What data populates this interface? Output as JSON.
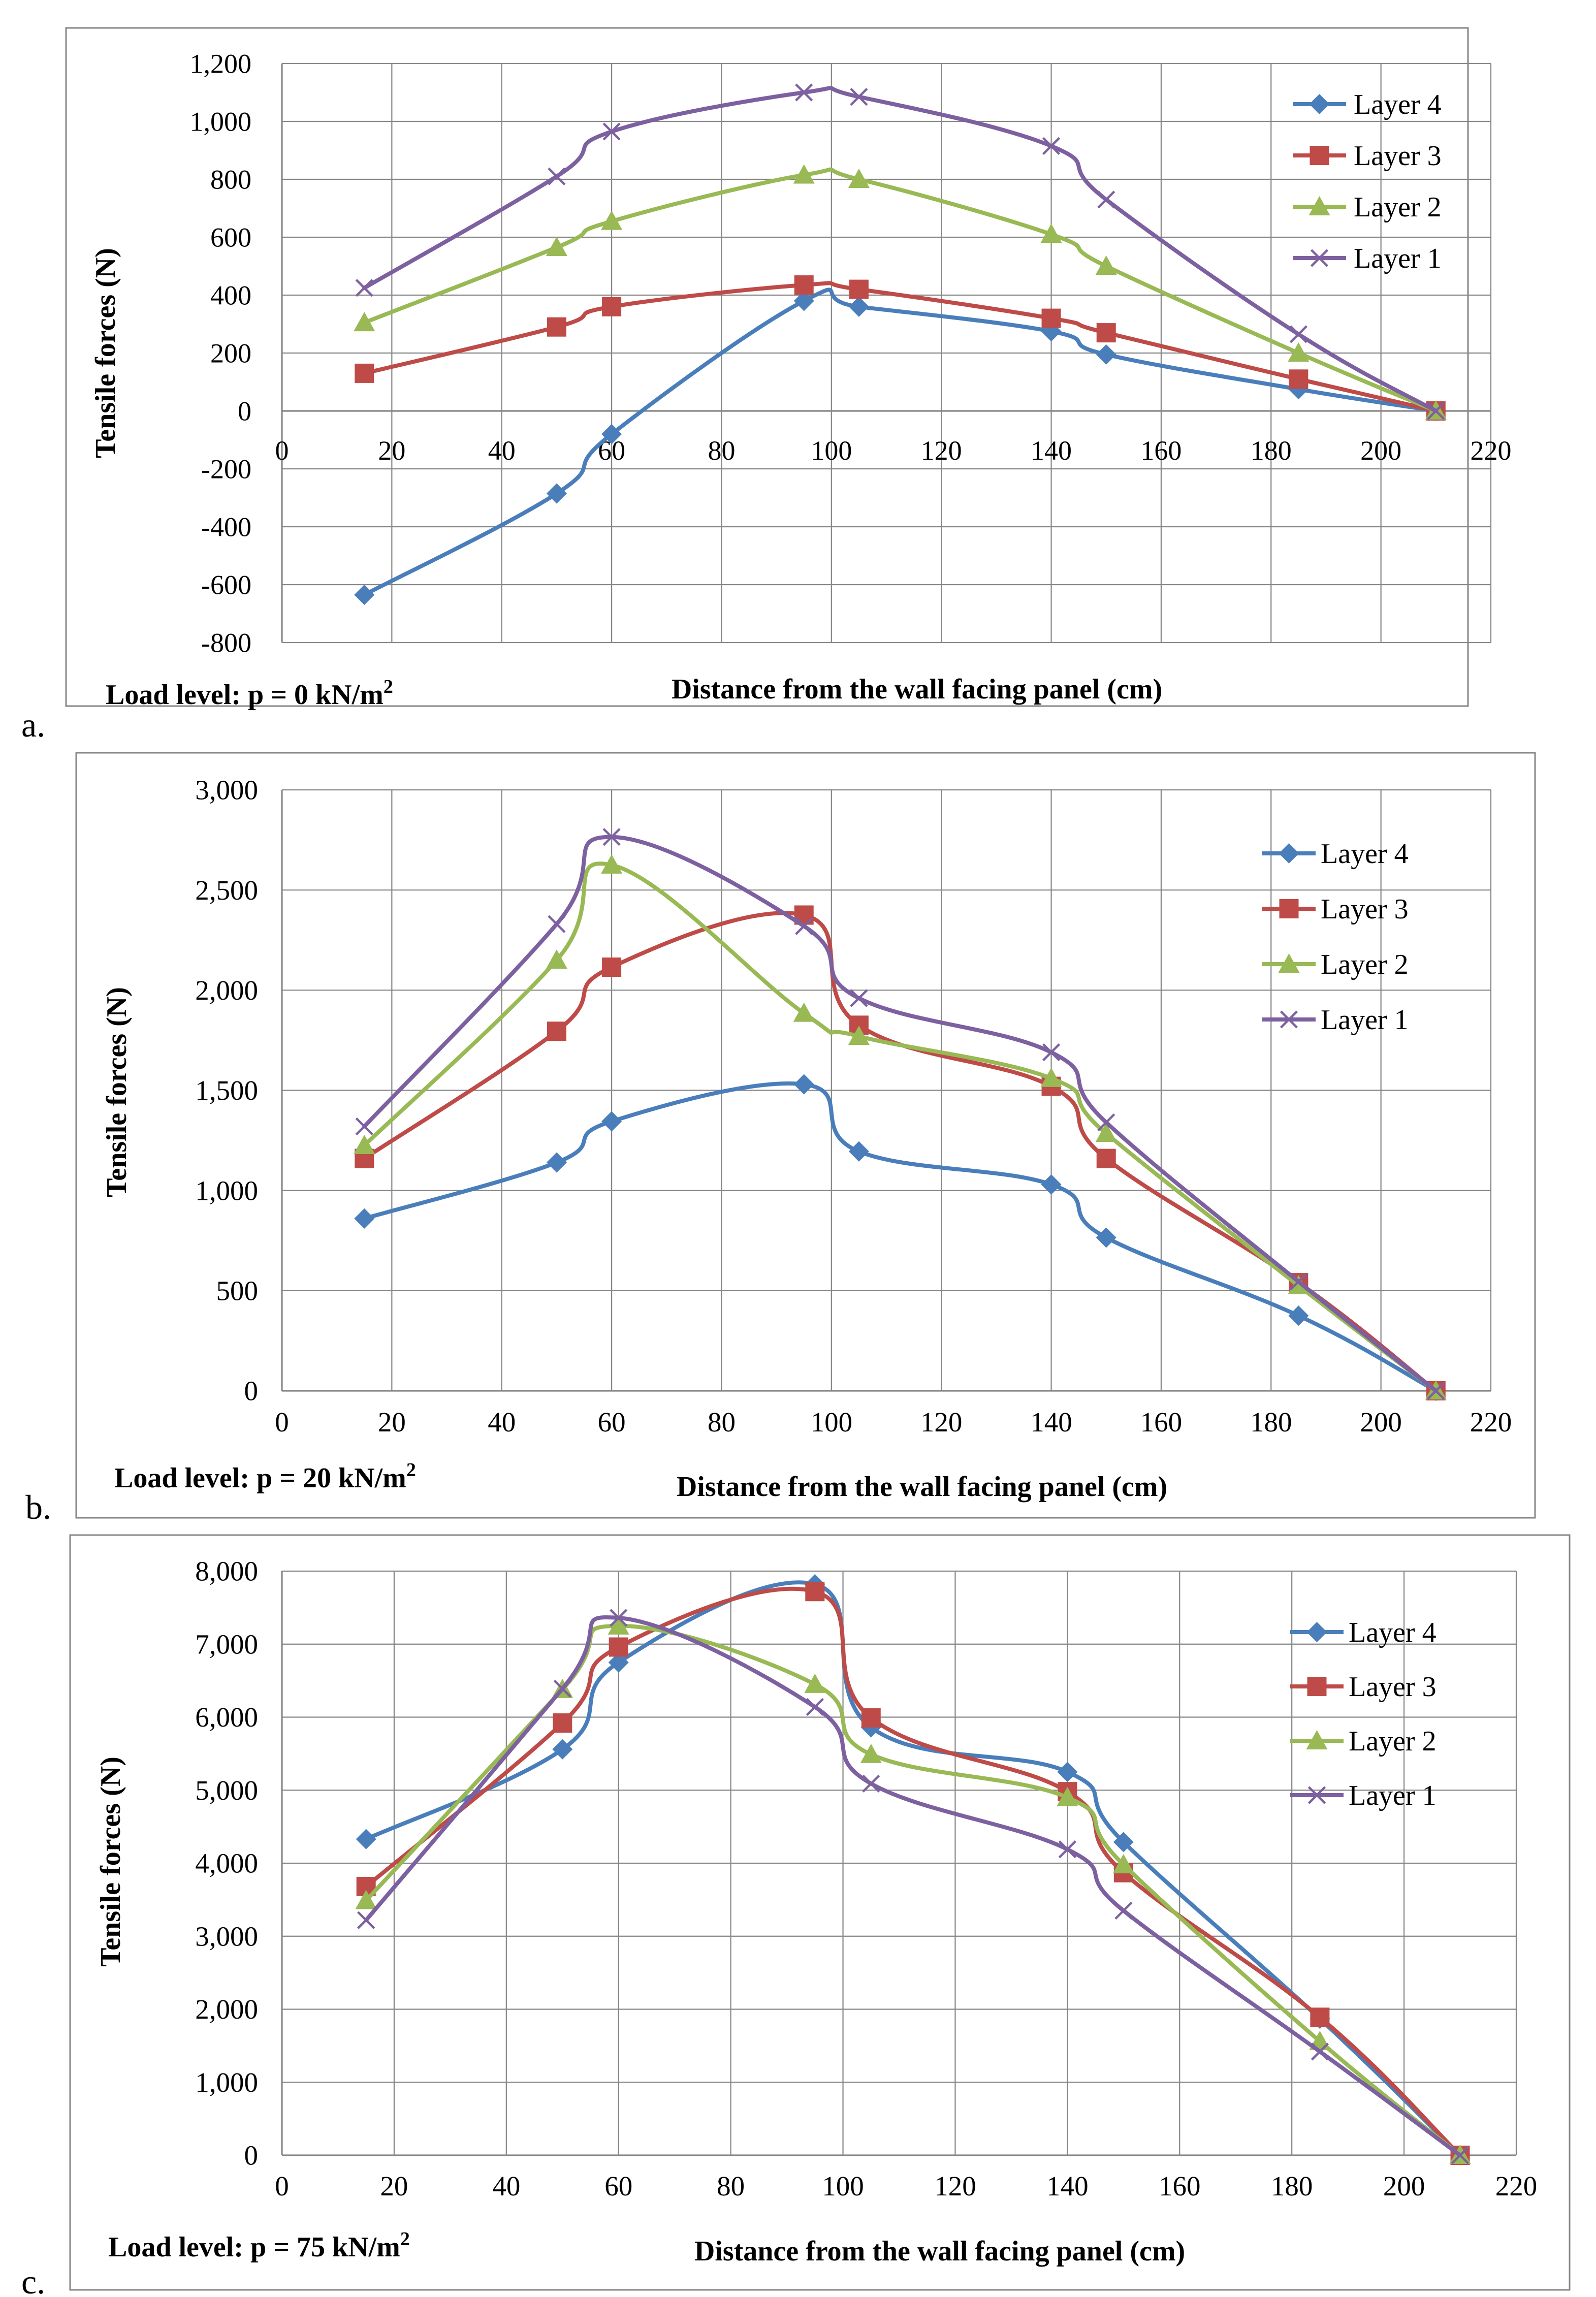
{
  "chart_data": [
    {
      "type": "line",
      "panel_letter": "a.",
      "ylabel": "Tensile forces (N)",
      "xlabel": "Distance from the wall facing panel (cm)",
      "load_label": "Load level: p = 0 kN/m",
      "load_sup": "2",
      "xlim": [
        0,
        220
      ],
      "ylim": [
        -800,
        1200
      ],
      "x_ticks": [
        0,
        20,
        40,
        60,
        80,
        100,
        120,
        140,
        160,
        180,
        200,
        220
      ],
      "x_tick_labels": [
        "0",
        "20",
        "40",
        "60",
        "80",
        "100",
        "120",
        "140",
        "160",
        "180",
        "200",
        "220"
      ],
      "y_ticks": [
        -800,
        -600,
        -400,
        -200,
        0,
        200,
        400,
        600,
        800,
        1000,
        1200
      ],
      "y_tick_labels": [
        "-800",
        "-600",
        "-400",
        "-200",
        "0",
        "200",
        "400",
        "600",
        "800",
        "1,000",
        "1,200"
      ],
      "x_axis_at_zero": true,
      "x": [
        15,
        50,
        60,
        95,
        105,
        140,
        150,
        185,
        210
      ],
      "series": [
        {
          "name": "Layer 4",
          "values": [
            -635,
            -285,
            -80,
            380,
            360,
            275,
            195,
            75,
            0
          ]
        },
        {
          "name": "Layer 3",
          "values": [
            130,
            290,
            360,
            435,
            420,
            320,
            270,
            110,
            0
          ]
        },
        {
          "name": "Layer 2",
          "values": [
            305,
            565,
            655,
            815,
            800,
            610,
            500,
            200,
            0
          ]
        },
        {
          "name": "Layer 1",
          "values": [
            425,
            810,
            965,
            1100,
            1085,
            915,
            730,
            265,
            0
          ]
        }
      ],
      "legend_position": "top-right"
    },
    {
      "type": "line",
      "panel_letter": "b.",
      "ylabel": "Tensile forces (N)",
      "xlabel": "Distance from the wall facing panel (cm)",
      "load_label": "Load level: p = 20 kN/m",
      "load_sup": "2",
      "xlim": [
        0,
        220
      ],
      "ylim": [
        0,
        3000
      ],
      "x_ticks": [
        0,
        20,
        40,
        60,
        80,
        100,
        120,
        140,
        160,
        180,
        200,
        220
      ],
      "x_tick_labels": [
        "0",
        "20",
        "40",
        "60",
        "80",
        "100",
        "120",
        "140",
        "160",
        "180",
        "200",
        "220"
      ],
      "y_ticks": [
        0,
        500,
        1000,
        1500,
        2000,
        2500,
        3000
      ],
      "y_tick_labels": [
        "0",
        "500",
        "1,000",
        "1,500",
        "2,000",
        "2,500",
        "3,000"
      ],
      "x_axis_at_zero": false,
      "x": [
        15,
        50,
        60,
        95,
        105,
        140,
        150,
        185,
        210
      ],
      "series": [
        {
          "name": "Layer 4",
          "values": [
            860,
            1140,
            1345,
            1530,
            1195,
            1030,
            765,
            375,
            0
          ]
        },
        {
          "name": "Layer 3",
          "values": [
            1160,
            1795,
            2115,
            2375,
            1825,
            1520,
            1160,
            540,
            0
          ]
        },
        {
          "name": "Layer 2",
          "values": [
            1225,
            2150,
            2625,
            1885,
            1770,
            1560,
            1285,
            525,
            0
          ]
        },
        {
          "name": "Layer 1",
          "values": [
            1320,
            2330,
            2765,
            2320,
            1960,
            1690,
            1340,
            545,
            0
          ]
        }
      ],
      "legend_position": "top-right"
    },
    {
      "type": "line",
      "panel_letter": "c.",
      "ylabel": "Tensile forces (N)",
      "xlabel": "Distance from the wall facing panel (cm)",
      "load_label": "Load level: p = 75 kN/m",
      "load_sup": "2",
      "xlim": [
        0,
        220
      ],
      "ylim": [
        0,
        8000
      ],
      "x_ticks": [
        0,
        20,
        40,
        60,
        80,
        100,
        120,
        140,
        160,
        180,
        200,
        220
      ],
      "x_tick_labels": [
        "0",
        "20",
        "40",
        "60",
        "80",
        "100",
        "120",
        "140",
        "160",
        "180",
        "200",
        "220"
      ],
      "y_ticks": [
        0,
        1000,
        2000,
        3000,
        4000,
        5000,
        6000,
        7000,
        8000
      ],
      "y_tick_labels": [
        "0",
        "1,000",
        "2,000",
        "3,000",
        "4,000",
        "5,000",
        "6,000",
        "7,000",
        "8,000"
      ],
      "x_axis_at_zero": false,
      "x": [
        15,
        50,
        60,
        95,
        105,
        140,
        150,
        185,
        210
      ],
      "series": [
        {
          "name": "Layer 4",
          "values": [
            4330,
            5560,
            6750,
            7820,
            5860,
            5250,
            4290,
            1870,
            0
          ]
        },
        {
          "name": "Layer 3",
          "values": [
            3680,
            5920,
            6960,
            7720,
            5990,
            4980,
            3870,
            1890,
            0
          ]
        },
        {
          "name": "Layer 2",
          "values": [
            3490,
            6380,
            7250,
            6450,
            5490,
            4900,
            3980,
            1560,
            0
          ]
        },
        {
          "name": "Layer 1",
          "values": [
            3220,
            6390,
            7360,
            6140,
            5090,
            4190,
            3350,
            1420,
            0
          ]
        }
      ],
      "legend_position": "top-right"
    }
  ],
  "colors": {
    "Layer 4": "#4a7ebb",
    "Layer 3": "#be4b48",
    "Layer 2": "#98b954",
    "Layer 1": "#7d60a0",
    "grid": "#868686",
    "frame": "#868686",
    "text": "#000000"
  },
  "markers": {
    "Layer 4": "diamond",
    "Layer 3": "square",
    "Layer 2": "triangle",
    "Layer 1": "x"
  }
}
